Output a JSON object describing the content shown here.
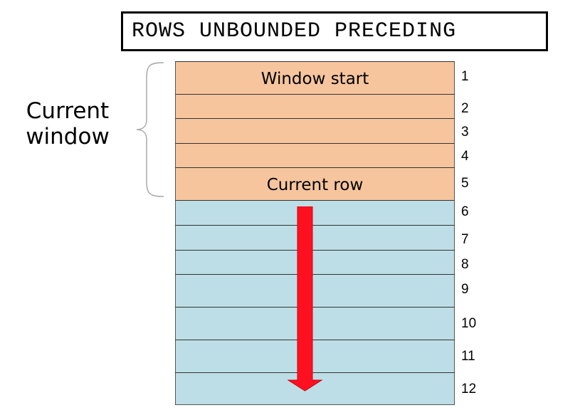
{
  "title": "ROWS UNBOUNDED PRECEDING",
  "window_label": "Current window",
  "rows": [
    {
      "number": "1",
      "label": "Window start",
      "in_window": true
    },
    {
      "number": "2",
      "label": "",
      "in_window": true
    },
    {
      "number": "3",
      "label": "",
      "in_window": true
    },
    {
      "number": "4",
      "label": "",
      "in_window": true
    },
    {
      "number": "5",
      "label": "Current row",
      "in_window": true
    },
    {
      "number": "6",
      "label": "",
      "in_window": false
    },
    {
      "number": "7",
      "label": "",
      "in_window": false
    },
    {
      "number": "8",
      "label": "",
      "in_window": false
    },
    {
      "number": "9",
      "label": "",
      "in_window": false
    },
    {
      "number": "10",
      "label": "",
      "in_window": false
    },
    {
      "number": "11",
      "label": "",
      "in_window": false
    },
    {
      "number": "12",
      "label": "",
      "in_window": false
    }
  ],
  "colors": {
    "window_fill": "#f6c59e",
    "after_fill": "#bddee6",
    "arrow": "#ff1020"
  }
}
